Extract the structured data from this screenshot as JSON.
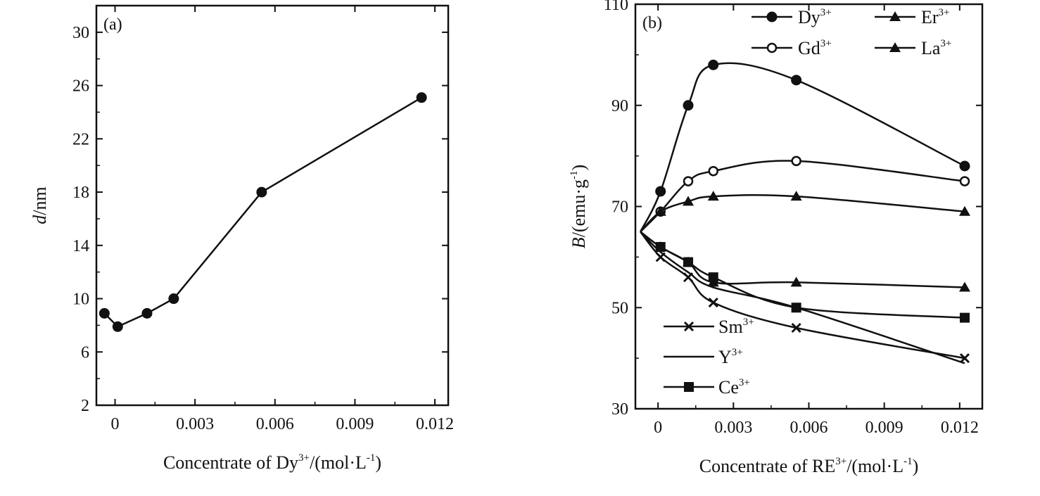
{
  "chart_data": [
    {
      "type": "line",
      "panel_label": "(a)",
      "ylabel_italic": "d",
      "ylabel_rest": "/nm",
      "xlabel_main": "Concentrate of Dy",
      "xlabel_sup": "3+",
      "xlabel_mid": "/(mol·L",
      "xlabel_sup2": "-1",
      "xlabel_end": ")",
      "xlim": [
        -0.0007,
        0.0125
      ],
      "ylim": [
        2,
        32
      ],
      "xticks": [
        0,
        0.003,
        0.006,
        0.009,
        0.012
      ],
      "xtick_labels": [
        "0",
        "0.003",
        "0.006",
        "0.009",
        "0.012"
      ],
      "yticks": [
        2,
        6,
        10,
        14,
        18,
        22,
        26,
        30
      ],
      "ytick_labels": [
        "2",
        "6",
        "10",
        "14",
        "18",
        "22",
        "26",
        "30"
      ],
      "series": [
        {
          "marker": "filled-circle",
          "x": [
            -0.0004,
            0.0001,
            0.0012,
            0.0022,
            0.0055,
            0.0115
          ],
          "y": [
            8.9,
            7.9,
            8.9,
            10.0,
            18.0,
            25.1
          ]
        }
      ]
    },
    {
      "type": "line",
      "panel_label": "(b)",
      "ylabel_italic": "B",
      "ylabel_rest": "/(emu·g",
      "ylabel_sup": "-1",
      "ylabel_end": ")",
      "xlabel_main": "Concentrate of RE",
      "xlabel_sup": "3+",
      "xlabel_mid": "/(mol·L",
      "xlabel_sup2": "-1",
      "xlabel_end": ")",
      "xlim": [
        -0.0009,
        0.0129
      ],
      "ylim": [
        30,
        110
      ],
      "xticks": [
        0,
        0.003,
        0.006,
        0.009,
        0.012
      ],
      "xtick_labels": [
        "0",
        "0.003",
        "0.006",
        "0.009",
        "0.012"
      ],
      "yticks": [
        30,
        50,
        70,
        90,
        110
      ],
      "ytick_labels": [
        "30",
        "50",
        "70",
        "90",
        "110"
      ],
      "series": [
        {
          "name": "Dy",
          "sup": "3+",
          "marker": "filled-circle",
          "x": [
            -0.0007,
            0.0001,
            0.0012,
            0.0022,
            0.0055,
            0.0122
          ],
          "y": [
            65,
            73,
            90,
            98,
            95,
            78
          ]
        },
        {
          "name": "Gd",
          "sup": "3+",
          "marker": "open-circle",
          "x": [
            -0.0007,
            0.0001,
            0.0012,
            0.0022,
            0.0055,
            0.0122
          ],
          "y": [
            65,
            69,
            75,
            77,
            79,
            75
          ]
        },
        {
          "name": "Er",
          "sup": "3+",
          "marker": "triangle",
          "x": [
            -0.0007,
            0.0001,
            0.0012,
            0.0022,
            0.0055,
            0.0122
          ],
          "y": [
            65,
            69,
            71,
            72,
            72,
            69
          ]
        },
        {
          "name": "La",
          "sup": "3+",
          "marker": "triangle",
          "x": [
            -0.0007,
            0.0001,
            0.0012,
            0.0022,
            0.0055,
            0.0122
          ],
          "y": [
            65,
            62,
            59,
            55,
            55,
            54
          ]
        },
        {
          "name": "Sm",
          "sup": "3+",
          "marker": "cross",
          "x": [
            -0.0007,
            0.0001,
            0.0012,
            0.0022,
            0.0055,
            0.0122
          ],
          "y": [
            65,
            60,
            56,
            51,
            46,
            40
          ]
        },
        {
          "name": "Y",
          "sup": "3+",
          "marker": "none",
          "x": [
            -0.0007,
            0.0001,
            0.0012,
            0.0022,
            0.0055,
            0.0122
          ],
          "y": [
            65,
            61,
            57,
            54,
            50,
            39
          ]
        },
        {
          "name": "Ce",
          "sup": "3+",
          "marker": "filled-square",
          "x": [
            -0.0007,
            0.0001,
            0.0012,
            0.0022,
            0.0055,
            0.0122
          ],
          "y": [
            65,
            62,
            59,
            56,
            50,
            48
          ]
        }
      ],
      "legend_top": [
        [
          "Dy",
          "Er"
        ],
        [
          "Gd",
          "La"
        ]
      ],
      "legend_bottom": [
        "Sm",
        "Y",
        "Ce"
      ]
    }
  ]
}
